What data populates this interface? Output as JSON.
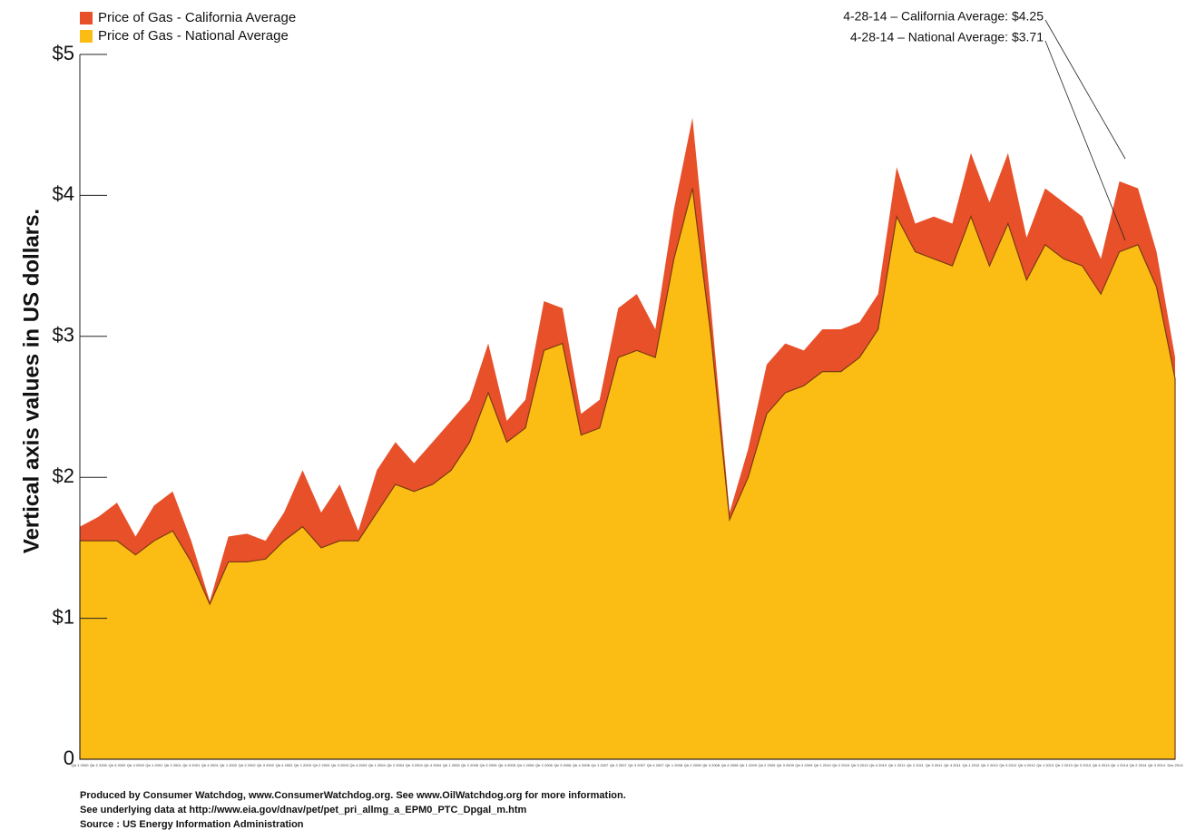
{
  "chart_data": {
    "type": "area",
    "y_axis_label": "Vertical axis values in US dollars.",
    "categories": [
      "Qtr 1 2000",
      "Qtr 2 2000",
      "Qtr 3 2000",
      "Qtr 4 2000",
      "Qtr 1 2001",
      "Qtr 2 2001",
      "Qtr 3 2001",
      "Qtr 4 2001",
      "Qtr 1 2002",
      "Qtr 2 2002",
      "Qtr 3 2002",
      "Qtr 4 2002",
      "Qtr 1 2003",
      "Qtr 2 2003",
      "Qtr 3 2003",
      "Qtr 4 2003",
      "Qtr 1 2004",
      "Qtr 2 2004",
      "Qtr 3 2004",
      "Qtr 4 2004",
      "Qtr 1 2005",
      "Qtr 2 2005",
      "Qtr 3 2005",
      "Qtr 4 2005",
      "Qtr 1 2006",
      "Qtr 2 2006",
      "Qtr 3 2006",
      "Qtr 4 2006",
      "Qtr 1 2007",
      "Qtr 2 2007",
      "Qtr 3 2007",
      "Qtr 4 2007",
      "Qtr 1 2008",
      "Qtr 2 2008",
      "Qtr 3 2008",
      "Qtr 4 2008",
      "Qtr 1 2009",
      "Qtr 2 2009",
      "Qtr 3 2009",
      "Qtr 4 2009",
      "Qtr 1 2010",
      "Qtr 2 2010",
      "Qtr 3 2010",
      "Qtr 4 2010",
      "Qtr 1 2011",
      "Qtr 2 2011",
      "Qtr 3 2011",
      "Qtr 4 2011",
      "Qtr 1 2012",
      "Qtr 2 2012",
      "Qtr 3 2012",
      "Qtr 4 2012",
      "Qtr 1 2013",
      "Qtr 2 2013",
      "Qtr 3 2013",
      "Qtr 4 2013",
      "Qtr 1 2014",
      "Qtr 2 2014",
      "Qtr 3 2014",
      "Dec 2014"
    ],
    "series": [
      {
        "name": "Price of Gas - California Average",
        "color": "#e8502a",
        "values": [
          1.65,
          1.72,
          1.82,
          1.58,
          1.8,
          1.9,
          1.55,
          1.12,
          1.58,
          1.6,
          1.55,
          1.75,
          2.05,
          1.75,
          1.95,
          1.62,
          2.05,
          2.25,
          2.1,
          2.25,
          2.4,
          2.55,
          2.95,
          2.4,
          2.55,
          3.25,
          3.2,
          2.45,
          2.55,
          3.2,
          3.3,
          3.05,
          3.9,
          4.55,
          3.2,
          1.75,
          2.2,
          2.8,
          2.95,
          2.9,
          3.05,
          3.05,
          3.1,
          3.3,
          4.2,
          3.8,
          3.85,
          3.8,
          4.3,
          3.95,
          4.3,
          3.7,
          4.05,
          3.95,
          3.85,
          3.55,
          4.1,
          4.05,
          3.6,
          2.85
        ]
      },
      {
        "name": "Price of Gas - National Average",
        "color": "#fbbc14",
        "values": [
          1.55,
          1.55,
          1.55,
          1.45,
          1.55,
          1.62,
          1.4,
          1.1,
          1.4,
          1.4,
          1.42,
          1.55,
          1.65,
          1.5,
          1.55,
          1.55,
          1.75,
          1.95,
          1.9,
          1.95,
          2.05,
          2.25,
          2.6,
          2.25,
          2.35,
          2.9,
          2.95,
          2.3,
          2.35,
          2.85,
          2.9,
          2.85,
          3.55,
          4.05,
          3.0,
          1.7,
          2.0,
          2.45,
          2.6,
          2.65,
          2.75,
          2.75,
          2.85,
          3.05,
          3.85,
          3.6,
          3.55,
          3.5,
          3.85,
          3.5,
          3.8,
          3.4,
          3.65,
          3.55,
          3.5,
          3.3,
          3.6,
          3.65,
          3.35,
          2.7
        ]
      }
    ],
    "ylim": [
      0,
      5
    ],
    "yticks": [
      {
        "value": 0,
        "label": "0"
      },
      {
        "value": 1,
        "label": "$1"
      },
      {
        "value": 2,
        "label": "$2"
      },
      {
        "value": 3,
        "label": "$3"
      },
      {
        "value": 4,
        "label": "$4"
      },
      {
        "value": 5,
        "label": "$5"
      }
    ],
    "annotations": [
      "4-28-14 – California Average: $4.25",
      "4-28-14 – National Average: $3.71"
    ],
    "footer": [
      "Produced by Consumer Watchdog, www.ConsumerWatchdog.org.  See www.OilWatchdog.org for more information.",
      "See underlying data at http://www.eia.gov/dnav/pet/pet_pri_allmg_a_EPM0_PTC_Dpgal_m.htm",
      "Source : US Energy Information Administration"
    ]
  }
}
